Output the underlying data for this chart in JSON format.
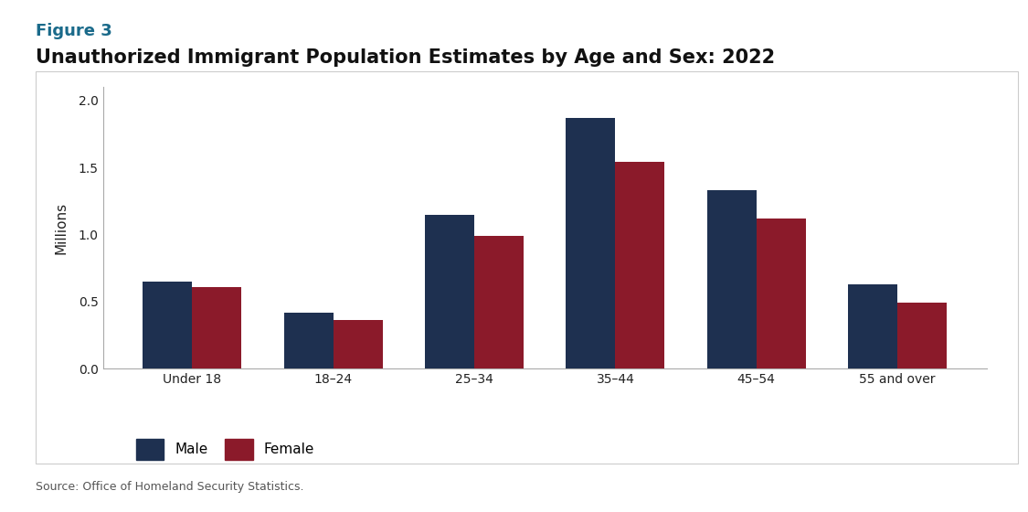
{
  "figure_label": "Figure 3",
  "title": "Unauthorized Immigrant Population Estimates by Age and Sex: 2022",
  "source": "Source: Office of Homeland Security Statistics.",
  "categories": [
    "Under 18",
    "18–24",
    "25–34",
    "35–44",
    "45–54",
    "55 and over"
  ],
  "male_values": [
    0.65,
    0.42,
    1.15,
    1.87,
    1.33,
    0.63
  ],
  "female_values": [
    0.61,
    0.36,
    0.99,
    1.54,
    1.12,
    0.49
  ],
  "male_color": "#1e3050",
  "female_color": "#8b1a2a",
  "ylabel": "Millions",
  "ylim": [
    0,
    2.1
  ],
  "yticks": [
    0.0,
    0.5,
    1.0,
    1.5,
    2.0
  ],
  "bar_width": 0.35,
  "legend_labels": [
    "Male",
    "Female"
  ],
  "figure_label_color": "#1a6a8a",
  "title_fontsize": 15,
  "figure_label_fontsize": 13,
  "ylabel_fontsize": 11,
  "tick_fontsize": 10,
  "legend_fontsize": 11,
  "source_fontsize": 9,
  "background_color": "#ffffff",
  "chart_bg_color": "#ffffff",
  "border_color": "#cccccc"
}
